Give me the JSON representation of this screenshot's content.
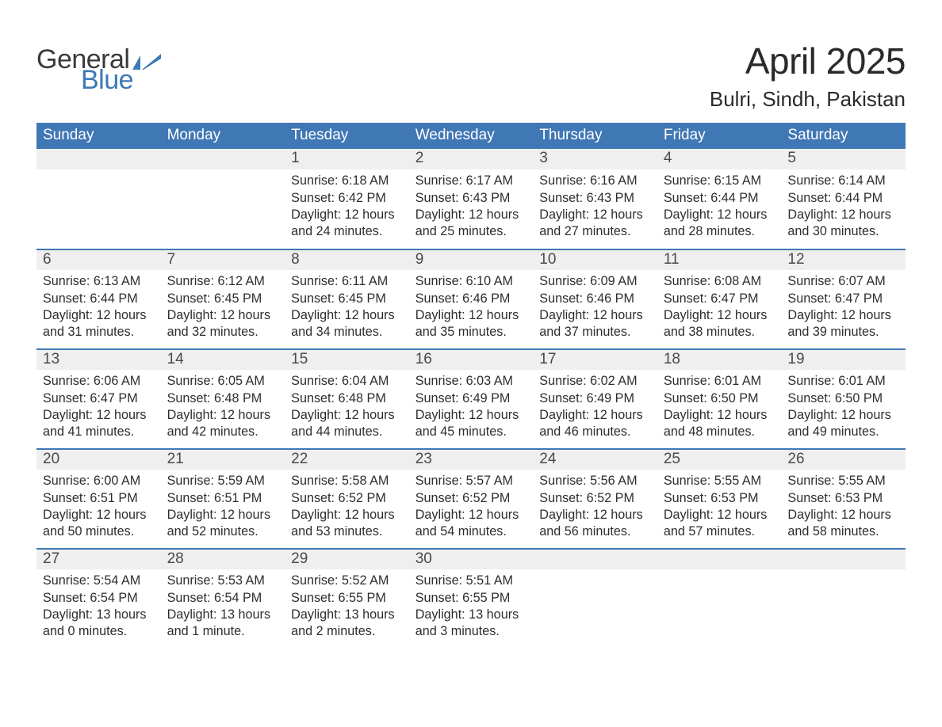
{
  "branding": {
    "logo_word1": "General",
    "logo_word2": "Blue",
    "logo_word1_color": "#3a3a3a",
    "logo_word2_color": "#3c79b5",
    "flag_color": "#3c79b5"
  },
  "header": {
    "title": "April 2025",
    "location": "Bulri, Sindh, Pakistan"
  },
  "calendar": {
    "header_bg": "#4077b5",
    "header_text_color": "#ffffff",
    "daynum_bg": "#efefef",
    "week_border_color": "#4077b5",
    "body_text_color": "#2e2e2e",
    "days_of_week": [
      "Sunday",
      "Monday",
      "Tuesday",
      "Wednesday",
      "Thursday",
      "Friday",
      "Saturday"
    ],
    "weeks": [
      [
        {
          "n": "",
          "sunrise": "",
          "sunset": "",
          "daylight": ""
        },
        {
          "n": "",
          "sunrise": "",
          "sunset": "",
          "daylight": ""
        },
        {
          "n": "1",
          "sunrise": "Sunrise: 6:18 AM",
          "sunset": "Sunset: 6:42 PM",
          "daylight": "Daylight: 12 hours and 24 minutes."
        },
        {
          "n": "2",
          "sunrise": "Sunrise: 6:17 AM",
          "sunset": "Sunset: 6:43 PM",
          "daylight": "Daylight: 12 hours and 25 minutes."
        },
        {
          "n": "3",
          "sunrise": "Sunrise: 6:16 AM",
          "sunset": "Sunset: 6:43 PM",
          "daylight": "Daylight: 12 hours and 27 minutes."
        },
        {
          "n": "4",
          "sunrise": "Sunrise: 6:15 AM",
          "sunset": "Sunset: 6:44 PM",
          "daylight": "Daylight: 12 hours and 28 minutes."
        },
        {
          "n": "5",
          "sunrise": "Sunrise: 6:14 AM",
          "sunset": "Sunset: 6:44 PM",
          "daylight": "Daylight: 12 hours and 30 minutes."
        }
      ],
      [
        {
          "n": "6",
          "sunrise": "Sunrise: 6:13 AM",
          "sunset": "Sunset: 6:44 PM",
          "daylight": "Daylight: 12 hours and 31 minutes."
        },
        {
          "n": "7",
          "sunrise": "Sunrise: 6:12 AM",
          "sunset": "Sunset: 6:45 PM",
          "daylight": "Daylight: 12 hours and 32 minutes."
        },
        {
          "n": "8",
          "sunrise": "Sunrise: 6:11 AM",
          "sunset": "Sunset: 6:45 PM",
          "daylight": "Daylight: 12 hours and 34 minutes."
        },
        {
          "n": "9",
          "sunrise": "Sunrise: 6:10 AM",
          "sunset": "Sunset: 6:46 PM",
          "daylight": "Daylight: 12 hours and 35 minutes."
        },
        {
          "n": "10",
          "sunrise": "Sunrise: 6:09 AM",
          "sunset": "Sunset: 6:46 PM",
          "daylight": "Daylight: 12 hours and 37 minutes."
        },
        {
          "n": "11",
          "sunrise": "Sunrise: 6:08 AM",
          "sunset": "Sunset: 6:47 PM",
          "daylight": "Daylight: 12 hours and 38 minutes."
        },
        {
          "n": "12",
          "sunrise": "Sunrise: 6:07 AM",
          "sunset": "Sunset: 6:47 PM",
          "daylight": "Daylight: 12 hours and 39 minutes."
        }
      ],
      [
        {
          "n": "13",
          "sunrise": "Sunrise: 6:06 AM",
          "sunset": "Sunset: 6:47 PM",
          "daylight": "Daylight: 12 hours and 41 minutes."
        },
        {
          "n": "14",
          "sunrise": "Sunrise: 6:05 AM",
          "sunset": "Sunset: 6:48 PM",
          "daylight": "Daylight: 12 hours and 42 minutes."
        },
        {
          "n": "15",
          "sunrise": "Sunrise: 6:04 AM",
          "sunset": "Sunset: 6:48 PM",
          "daylight": "Daylight: 12 hours and 44 minutes."
        },
        {
          "n": "16",
          "sunrise": "Sunrise: 6:03 AM",
          "sunset": "Sunset: 6:49 PM",
          "daylight": "Daylight: 12 hours and 45 minutes."
        },
        {
          "n": "17",
          "sunrise": "Sunrise: 6:02 AM",
          "sunset": "Sunset: 6:49 PM",
          "daylight": "Daylight: 12 hours and 46 minutes."
        },
        {
          "n": "18",
          "sunrise": "Sunrise: 6:01 AM",
          "sunset": "Sunset: 6:50 PM",
          "daylight": "Daylight: 12 hours and 48 minutes."
        },
        {
          "n": "19",
          "sunrise": "Sunrise: 6:01 AM",
          "sunset": "Sunset: 6:50 PM",
          "daylight": "Daylight: 12 hours and 49 minutes."
        }
      ],
      [
        {
          "n": "20",
          "sunrise": "Sunrise: 6:00 AM",
          "sunset": "Sunset: 6:51 PM",
          "daylight": "Daylight: 12 hours and 50 minutes."
        },
        {
          "n": "21",
          "sunrise": "Sunrise: 5:59 AM",
          "sunset": "Sunset: 6:51 PM",
          "daylight": "Daylight: 12 hours and 52 minutes."
        },
        {
          "n": "22",
          "sunrise": "Sunrise: 5:58 AM",
          "sunset": "Sunset: 6:52 PM",
          "daylight": "Daylight: 12 hours and 53 minutes."
        },
        {
          "n": "23",
          "sunrise": "Sunrise: 5:57 AM",
          "sunset": "Sunset: 6:52 PM",
          "daylight": "Daylight: 12 hours and 54 minutes."
        },
        {
          "n": "24",
          "sunrise": "Sunrise: 5:56 AM",
          "sunset": "Sunset: 6:52 PM",
          "daylight": "Daylight: 12 hours and 56 minutes."
        },
        {
          "n": "25",
          "sunrise": "Sunrise: 5:55 AM",
          "sunset": "Sunset: 6:53 PM",
          "daylight": "Daylight: 12 hours and 57 minutes."
        },
        {
          "n": "26",
          "sunrise": "Sunrise: 5:55 AM",
          "sunset": "Sunset: 6:53 PM",
          "daylight": "Daylight: 12 hours and 58 minutes."
        }
      ],
      [
        {
          "n": "27",
          "sunrise": "Sunrise: 5:54 AM",
          "sunset": "Sunset: 6:54 PM",
          "daylight": "Daylight: 13 hours and 0 minutes."
        },
        {
          "n": "28",
          "sunrise": "Sunrise: 5:53 AM",
          "sunset": "Sunset: 6:54 PM",
          "daylight": "Daylight: 13 hours and 1 minute."
        },
        {
          "n": "29",
          "sunrise": "Sunrise: 5:52 AM",
          "sunset": "Sunset: 6:55 PM",
          "daylight": "Daylight: 13 hours and 2 minutes."
        },
        {
          "n": "30",
          "sunrise": "Sunrise: 5:51 AM",
          "sunset": "Sunset: 6:55 PM",
          "daylight": "Daylight: 13 hours and 3 minutes."
        },
        {
          "n": "",
          "sunrise": "",
          "sunset": "",
          "daylight": ""
        },
        {
          "n": "",
          "sunrise": "",
          "sunset": "",
          "daylight": ""
        },
        {
          "n": "",
          "sunrise": "",
          "sunset": "",
          "daylight": ""
        }
      ]
    ]
  }
}
